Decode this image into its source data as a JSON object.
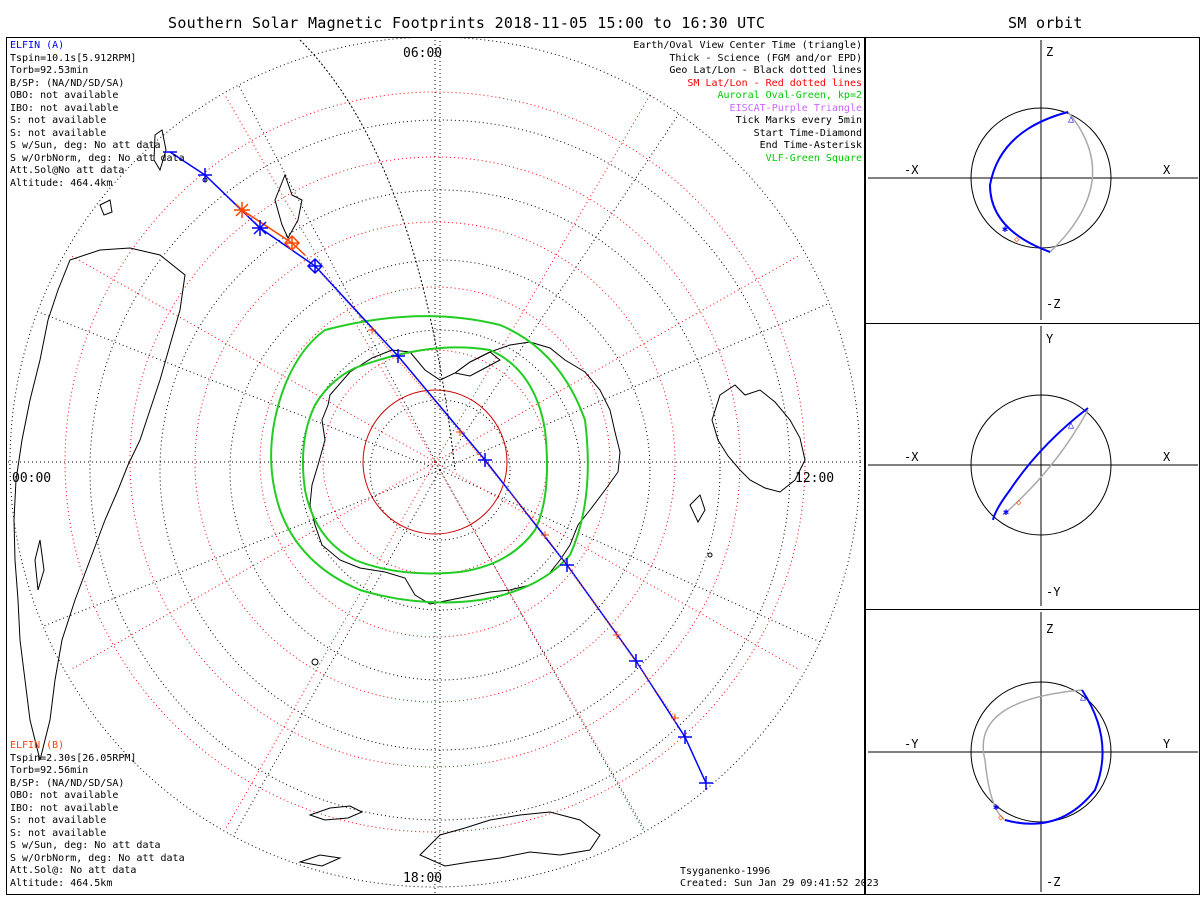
{
  "title": "Southern Solar Magnetic Footprints 2018-11-05 15:00 to 16:30 UTC",
  "orbit_title": "SM orbit",
  "elfin_a": {
    "name": "ELFIN (A)",
    "color": "#0000ff",
    "lines": [
      "Tspin=10.1s[5.912RPM]",
      "Torb=92.53min",
      "B/SP: (NA/ND/SD/SA)",
      "OBO: not available",
      "IBO: not available",
      "S: not available",
      "S: not available",
      "S w/Sun, deg: No att data",
      "S w/OrbNorm, deg: No att data",
      "Att.Sol@No att data",
      "Altitude: 464.4km"
    ]
  },
  "elfin_b": {
    "name": "ELFIN (B)",
    "color": "#ff4500",
    "lines": [
      "Tspin=2.30s[26.05RPM]",
      "Torb=92.56min",
      "B/SP: (NA/ND/SD/SA)",
      "OBO: not available",
      "IBO: not available",
      "S: not available",
      "S: not available",
      "S w/Sun, deg: No att data",
      "S w/OrbNorm, deg: No att data",
      "Att.Sol@: No att data",
      "Altitude: 464.5km"
    ]
  },
  "legend": [
    {
      "text": "Earth/Oval View Center Time (triangle)",
      "color": "#000000"
    },
    {
      "text": "Thick - Science (FGM and/or EPD)",
      "color": "#000000"
    },
    {
      "text": "Geo Lat/Lon - Black dotted lines",
      "color": "#000000"
    },
    {
      "text": "SM Lat/Lon - Red dotted lines",
      "color": "#ff0000"
    },
    {
      "text": "Auroral Oval-Green, kp=2",
      "color": "#00cc00"
    },
    {
      "text": "EISCAT-Purple Triangle",
      "color": "#cc66ff"
    },
    {
      "text": "Tick Marks every 5min",
      "color": "#000000"
    },
    {
      "text": "Start Time-Diamond",
      "color": "#000000"
    },
    {
      "text": "End Time-Asterisk",
      "color": "#000000"
    },
    {
      "text": "VLF-Green Square",
      "color": "#00cc00"
    }
  ],
  "mlt_labels": {
    "top": "06:00",
    "left": "00:00",
    "right": "12:00",
    "bottom": "18:00"
  },
  "footer": {
    "model": "Tsyganenko-1996",
    "created": "Created: Sun Jan 29 09:41:52 2023"
  },
  "panels": [
    {
      "top": "Z",
      "bottom": "-Z",
      "left": "-X",
      "right": "X"
    },
    {
      "top": "Y",
      "bottom": "-Y",
      "left": "-X",
      "right": "X"
    },
    {
      "top": "Z",
      "bottom": "-Z",
      "left": "-Y",
      "right": "Y"
    }
  ]
}
